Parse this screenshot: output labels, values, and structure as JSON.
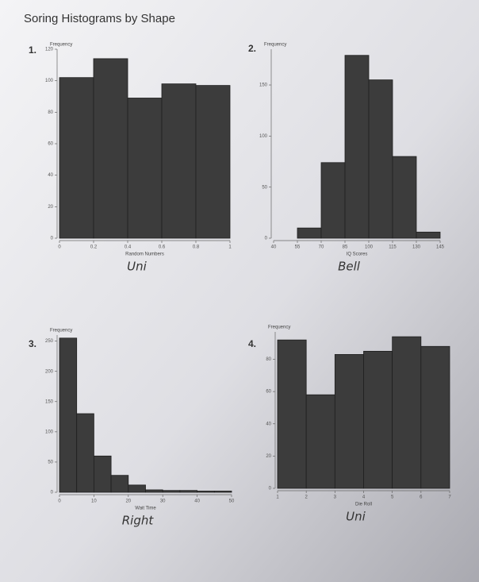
{
  "title": "Soring Histograms by Shape",
  "chart_data": [
    {
      "type": "histogram",
      "label": "1.",
      "ylabel": "Frequency",
      "xlabel": "Random Numbers",
      "annotation": "Uni",
      "bins": [
        0,
        0.2,
        0.4,
        0.6,
        0.8,
        1
      ],
      "values": [
        102,
        114,
        89,
        98,
        97
      ],
      "color": "#3c3c3c",
      "xlim": [
        0,
        1
      ],
      "xticks": [
        0,
        0.2,
        0.4,
        0.6,
        0.8,
        1
      ],
      "ylim": [
        0,
        120
      ],
      "yticks": [
        0,
        20,
        40,
        60,
        80,
        100,
        120
      ]
    },
    {
      "type": "histogram",
      "label": "2.",
      "ylabel": "Frequency",
      "xlabel": "IQ Scores",
      "annotation": "Bell",
      "bins": [
        40,
        55,
        70,
        85,
        100,
        115,
        130,
        145
      ],
      "values": [
        0,
        10,
        74,
        179,
        155,
        80,
        6
      ],
      "color": "#3c3c3c",
      "xlim": [
        40,
        145
      ],
      "xticks": [
        40,
        55,
        70,
        85,
        100,
        115,
        130,
        145
      ],
      "ylim": [
        0,
        185
      ],
      "yticks": [
        0,
        50,
        100,
        150
      ]
    },
    {
      "type": "histogram",
      "label": "3.",
      "ylabel": "Frequency",
      "xlabel": "Wait Time",
      "annotation": "Right",
      "bins": [
        0,
        5,
        10,
        15,
        20,
        25,
        30,
        35,
        40,
        45,
        50
      ],
      "values": [
        255,
        130,
        60,
        28,
        12,
        4,
        3,
        3,
        2,
        2
      ],
      "color": "#3c3c3c",
      "xlim": [
        0,
        50
      ],
      "xticks": [
        0,
        10,
        20,
        30,
        40,
        50
      ],
      "ylim": [
        0,
        260
      ],
      "yticks": [
        0,
        50,
        100,
        150,
        200,
        250
      ]
    },
    {
      "type": "histogram",
      "label": "4.",
      "ylabel": "Frequency",
      "xlabel": "Die Roll",
      "annotation": "Uni",
      "bins": [
        1,
        2,
        3,
        4,
        5,
        6,
        7
      ],
      "values": [
        92,
        58,
        83,
        85,
        94,
        88
      ],
      "color": "#3c3c3c",
      "xlim": [
        1,
        7
      ],
      "xticks": [
        1,
        2,
        3,
        4,
        5,
        6,
        7
      ],
      "ylim": [
        0,
        97
      ],
      "yticks": [
        0,
        20,
        40,
        60,
        80
      ]
    }
  ]
}
